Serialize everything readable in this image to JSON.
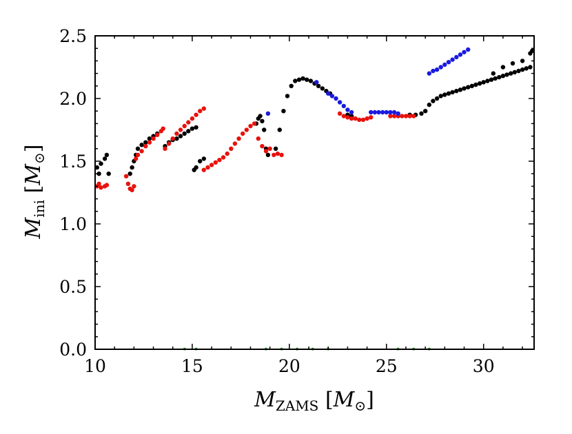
{
  "chart_data": {
    "type": "scatter",
    "xlabel": "M_ZAMS [M_⊙]",
    "ylabel": "M_ini [M_⊙]",
    "xlabel_main": "M",
    "xlabel_sub": "ZAMS",
    "ylabel_main": "M",
    "ylabel_sub": "ini",
    "unit_open": "[",
    "unit_main": "M",
    "unit_sub": "⊙",
    "unit_close": "]",
    "xlim": [
      10,
      32.6
    ],
    "ylim": [
      0,
      2.5
    ],
    "x_ticks": [
      10,
      15,
      20,
      25,
      30
    ],
    "y_ticks": [
      0.0,
      0.5,
      1.0,
      1.5,
      2.0,
      2.5
    ],
    "x_tick_labels": [
      "10",
      "15",
      "20",
      "25",
      "30"
    ],
    "y_tick_labels": [
      "0.0",
      "0.5",
      "1.0",
      "1.5",
      "2.0",
      "2.5"
    ],
    "grid": false,
    "series": [
      {
        "name": "black",
        "color": "#000000",
        "points": [
          [
            10.1,
            1.45
          ],
          [
            10.2,
            1.4
          ],
          [
            10.3,
            1.48
          ],
          [
            10.5,
            1.52
          ],
          [
            10.6,
            1.55
          ],
          [
            10.7,
            1.4
          ],
          [
            11.8,
            1.4
          ],
          [
            11.9,
            1.45
          ],
          [
            12.0,
            1.5
          ],
          [
            12.1,
            1.55
          ],
          [
            12.2,
            1.6
          ],
          [
            12.4,
            1.63
          ],
          [
            12.6,
            1.65
          ],
          [
            12.8,
            1.68
          ],
          [
            13.0,
            1.7
          ],
          [
            13.2,
            1.72
          ],
          [
            13.6,
            1.62
          ],
          [
            13.8,
            1.65
          ],
          [
            14.0,
            1.67
          ],
          [
            14.2,
            1.68
          ],
          [
            14.4,
            1.7
          ],
          [
            14.6,
            1.72
          ],
          [
            14.8,
            1.74
          ],
          [
            15.0,
            1.76
          ],
          [
            15.2,
            1.77
          ],
          [
            15.1,
            1.43
          ],
          [
            15.2,
            1.45
          ],
          [
            15.4,
            1.5
          ],
          [
            15.6,
            1.52
          ],
          [
            18.3,
            1.8
          ],
          [
            18.4,
            1.84
          ],
          [
            18.5,
            1.86
          ],
          [
            18.6,
            1.82
          ],
          [
            18.7,
            1.75
          ],
          [
            18.8,
            1.6
          ],
          [
            18.9,
            1.55
          ],
          [
            19.3,
            1.6
          ],
          [
            19.5,
            1.75
          ],
          [
            19.7,
            1.9
          ],
          [
            19.9,
            2.02
          ],
          [
            20.1,
            2.1
          ],
          [
            20.3,
            2.14
          ],
          [
            20.5,
            2.15
          ],
          [
            20.7,
            2.16
          ],
          [
            20.9,
            2.15
          ],
          [
            21.1,
            2.14
          ],
          [
            21.3,
            2.12
          ],
          [
            21.5,
            2.1
          ],
          [
            21.7,
            2.08
          ],
          [
            21.9,
            2.06
          ],
          [
            22.1,
            2.04
          ],
          [
            23.0,
            1.87
          ],
          [
            23.2,
            1.86
          ],
          [
            26.2,
            1.87
          ],
          [
            26.5,
            1.87
          ],
          [
            26.8,
            1.88
          ],
          [
            27.0,
            1.9
          ],
          [
            27.2,
            1.95
          ],
          [
            27.4,
            1.98
          ],
          [
            27.6,
            2.0
          ],
          [
            27.8,
            2.02
          ],
          [
            28.0,
            2.03
          ],
          [
            28.2,
            2.04
          ],
          [
            28.4,
            2.05
          ],
          [
            28.6,
            2.06
          ],
          [
            28.8,
            2.07
          ],
          [
            29.0,
            2.08
          ],
          [
            29.2,
            2.09
          ],
          [
            29.4,
            2.1
          ],
          [
            29.6,
            2.11
          ],
          [
            29.8,
            2.12
          ],
          [
            30.0,
            2.13
          ],
          [
            30.2,
            2.14
          ],
          [
            30.4,
            2.15
          ],
          [
            30.6,
            2.16
          ],
          [
            30.8,
            2.17
          ],
          [
            31.0,
            2.18
          ],
          [
            31.2,
            2.19
          ],
          [
            31.4,
            2.2
          ],
          [
            31.6,
            2.21
          ],
          [
            31.8,
            2.22
          ],
          [
            32.0,
            2.23
          ],
          [
            32.2,
            2.24
          ],
          [
            32.4,
            2.25
          ],
          [
            30.5,
            2.2
          ],
          [
            31.0,
            2.25
          ],
          [
            31.5,
            2.28
          ],
          [
            32.0,
            2.3
          ],
          [
            32.4,
            2.36
          ],
          [
            32.5,
            2.38
          ]
        ]
      },
      {
        "name": "red",
        "color": "#e8120c",
        "points": [
          [
            10.1,
            1.3
          ],
          [
            10.2,
            1.32
          ],
          [
            10.3,
            1.29
          ],
          [
            10.5,
            1.3
          ],
          [
            10.6,
            1.31
          ],
          [
            11.6,
            1.38
          ],
          [
            11.7,
            1.32
          ],
          [
            11.8,
            1.28
          ],
          [
            11.9,
            1.27
          ],
          [
            12.0,
            1.3
          ],
          [
            12.1,
            1.52
          ],
          [
            12.2,
            1.55
          ],
          [
            12.4,
            1.58
          ],
          [
            12.6,
            1.62
          ],
          [
            12.8,
            1.65
          ],
          [
            13.0,
            1.68
          ],
          [
            13.2,
            1.71
          ],
          [
            13.4,
            1.74
          ],
          [
            13.5,
            1.76
          ],
          [
            13.6,
            1.6
          ],
          [
            13.8,
            1.64
          ],
          [
            14.0,
            1.68
          ],
          [
            14.2,
            1.72
          ],
          [
            14.4,
            1.75
          ],
          [
            14.6,
            1.78
          ],
          [
            14.8,
            1.81
          ],
          [
            15.0,
            1.84
          ],
          [
            15.2,
            1.87
          ],
          [
            15.4,
            1.9
          ],
          [
            15.6,
            1.92
          ],
          [
            15.6,
            1.43
          ],
          [
            15.8,
            1.45
          ],
          [
            16.0,
            1.47
          ],
          [
            16.2,
            1.49
          ],
          [
            16.4,
            1.51
          ],
          [
            16.6,
            1.53
          ],
          [
            16.8,
            1.56
          ],
          [
            17.0,
            1.6
          ],
          [
            17.2,
            1.64
          ],
          [
            17.4,
            1.68
          ],
          [
            17.6,
            1.72
          ],
          [
            17.8,
            1.75
          ],
          [
            18.0,
            1.78
          ],
          [
            18.2,
            1.8
          ],
          [
            18.4,
            1.68
          ],
          [
            18.6,
            1.62
          ],
          [
            18.8,
            1.58
          ],
          [
            19.0,
            1.6
          ],
          [
            19.2,
            1.55
          ],
          [
            19.4,
            1.56
          ],
          [
            19.6,
            1.55
          ],
          [
            22.6,
            1.88
          ],
          [
            22.8,
            1.86
          ],
          [
            23.0,
            1.85
          ],
          [
            23.2,
            1.84
          ],
          [
            23.4,
            1.84
          ],
          [
            23.6,
            1.83
          ],
          [
            23.8,
            1.83
          ],
          [
            24.0,
            1.84
          ],
          [
            24.2,
            1.85
          ],
          [
            25.2,
            1.86
          ],
          [
            25.4,
            1.86
          ],
          [
            25.6,
            1.86
          ],
          [
            25.8,
            1.86
          ],
          [
            26.0,
            1.86
          ],
          [
            26.2,
            1.86
          ],
          [
            26.4,
            1.86
          ]
        ]
      },
      {
        "name": "blue",
        "color": "#1a1adf",
        "points": [
          [
            18.9,
            1.88
          ],
          [
            21.4,
            2.13
          ],
          [
            22.0,
            2.04
          ],
          [
            22.2,
            2.02
          ],
          [
            22.4,
            2.0
          ],
          [
            22.6,
            1.97
          ],
          [
            22.8,
            1.94
          ],
          [
            23.0,
            1.91
          ],
          [
            23.2,
            1.89
          ],
          [
            24.2,
            1.89
          ],
          [
            24.4,
            1.89
          ],
          [
            24.6,
            1.89
          ],
          [
            24.8,
            1.89
          ],
          [
            25.0,
            1.89
          ],
          [
            25.2,
            1.89
          ],
          [
            25.4,
            1.89
          ],
          [
            25.6,
            1.88
          ],
          [
            27.2,
            2.2
          ],
          [
            27.4,
            2.22
          ],
          [
            27.6,
            2.23
          ],
          [
            27.8,
            2.25
          ],
          [
            28.0,
            2.27
          ],
          [
            28.2,
            2.29
          ],
          [
            28.4,
            2.31
          ],
          [
            28.6,
            2.33
          ],
          [
            28.8,
            2.35
          ],
          [
            29.0,
            2.37
          ],
          [
            29.2,
            2.39
          ]
        ]
      },
      {
        "name": "green",
        "color": "#2a9a2a",
        "points": [
          [
            14.6,
            0.002
          ],
          [
            15.2,
            0.002
          ],
          [
            18.8,
            0.002
          ],
          [
            19.6,
            0.002
          ],
          [
            20.4,
            0.002
          ],
          [
            21.2,
            0.002
          ],
          [
            22.0,
            0.002
          ],
          [
            25.6,
            0.002
          ],
          [
            26.4,
            0.002
          ],
          [
            27.2,
            0.002
          ]
        ]
      }
    ]
  }
}
